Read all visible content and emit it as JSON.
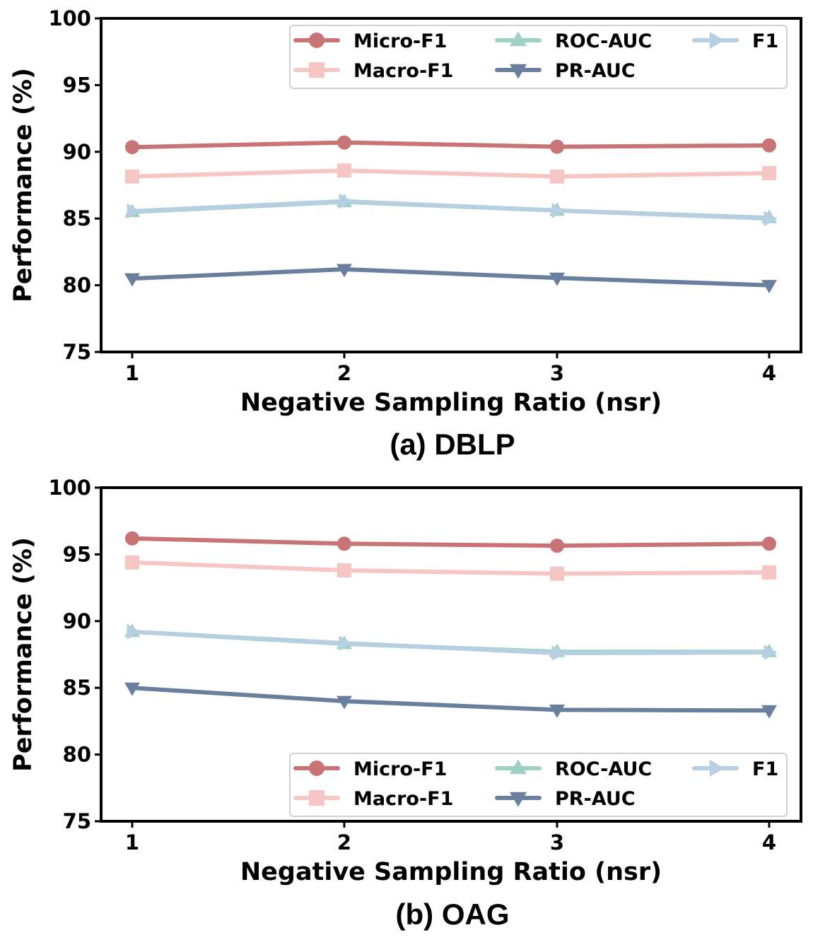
{
  "chart_data": [
    {
      "type": "line",
      "caption": "(a) DBLP",
      "xlabel": "Negative Sampling Ratio (nsr)",
      "ylabel": "Performance (%)",
      "x": [
        1,
        2,
        3,
        4
      ],
      "xticks": [
        "1",
        "2",
        "3",
        "4"
      ],
      "ylim": [
        75,
        100
      ],
      "yticks": [
        "75",
        "80",
        "85",
        "90",
        "95",
        "100"
      ],
      "legend_position": "top-right",
      "series": [
        {
          "name": "Micro-F1",
          "marker": "circle",
          "color": "#C97474",
          "values": [
            90.35,
            90.7,
            90.38,
            90.48
          ]
        },
        {
          "name": "Macro-F1",
          "marker": "square",
          "color": "#F6C6C5",
          "values": [
            88.15,
            88.6,
            88.15,
            88.4
          ]
        },
        {
          "name": "ROC-AUC",
          "marker": "triangle-up",
          "color": "#9ED1C4",
          "values": [
            85.5,
            86.25,
            85.6,
            85.05
          ]
        },
        {
          "name": "PR-AUC",
          "marker": "triangle-down",
          "color": "#6A7F9E",
          "values": [
            80.5,
            81.2,
            80.55,
            80.0
          ]
        },
        {
          "name": "F1",
          "marker": "triangle-right",
          "color": "#B6CFE3",
          "values": [
            85.55,
            86.3,
            85.6,
            85.0
          ]
        }
      ]
    },
    {
      "type": "line",
      "caption": "(b) OAG",
      "xlabel": "Negative Sampling Ratio (nsr)",
      "ylabel": "Performance (%)",
      "x": [
        1,
        2,
        3,
        4
      ],
      "xticks": [
        "1",
        "2",
        "3",
        "4"
      ],
      "ylim": [
        75,
        100
      ],
      "yticks": [
        "75",
        "80",
        "85",
        "90",
        "95",
        "100"
      ],
      "legend_position": "bottom-right",
      "series": [
        {
          "name": "Micro-F1",
          "marker": "circle",
          "color": "#C97474",
          "values": [
            96.2,
            95.8,
            95.65,
            95.8
          ]
        },
        {
          "name": "Macro-F1",
          "marker": "square",
          "color": "#F6C6C5",
          "values": [
            94.4,
            93.8,
            93.55,
            93.65
          ]
        },
        {
          "name": "ROC-AUC",
          "marker": "triangle-up",
          "color": "#9ED1C4",
          "values": [
            89.2,
            88.3,
            87.7,
            87.7
          ]
        },
        {
          "name": "PR-AUC",
          "marker": "triangle-down",
          "color": "#6A7F9E",
          "values": [
            85.0,
            84.0,
            83.35,
            83.3
          ]
        },
        {
          "name": "F1",
          "marker": "triangle-right",
          "color": "#B6CFE3",
          "values": [
            89.2,
            88.35,
            87.6,
            87.65
          ]
        }
      ]
    }
  ]
}
